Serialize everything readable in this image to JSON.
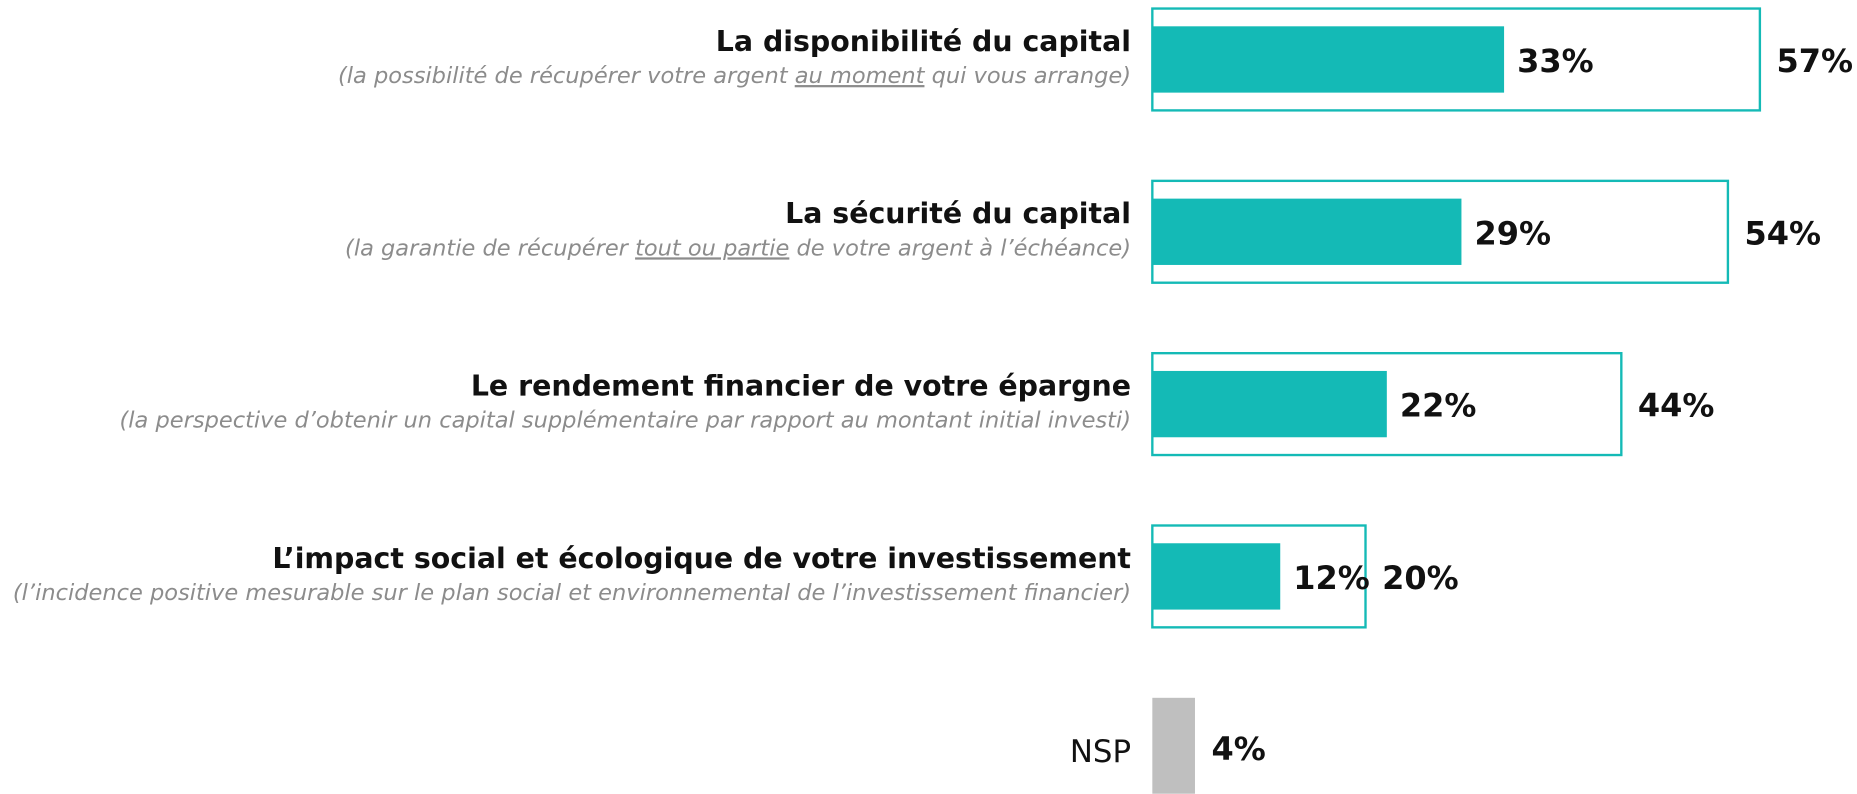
{
  "chart_data": {
    "type": "bar",
    "categories": [
      "La disponibilité du capital",
      "La sécurité du capital",
      "Le rendement financier de votre épargne",
      "L’impact social et écologique de votre investissement"
    ],
    "subtitles": [
      [
        {
          "text": "(la possibilité de récupérer votre argent ",
          "underline": false
        },
        {
          "text": "au moment",
          "underline": true
        },
        {
          "text": " qui vous arrange)",
          "underline": false
        }
      ],
      [
        {
          "text": "(la garantie de récupérer ",
          "underline": false
        },
        {
          "text": "tout ou partie",
          "underline": true
        },
        {
          "text": " de votre argent à l’échéance)",
          "underline": false
        }
      ],
      [
        {
          "text": "(la perspective d’obtenir un capital supplémentaire par rapport au montant initial investi)",
          "underline": false
        }
      ],
      [
        {
          "text": "(l’incidence positive mesurable sur le plan social et environnemental de l’investissement financier)",
          "underline": false
        }
      ]
    ],
    "series": [
      {
        "color": "#14bab6",
        "style": "filled",
        "values": [
          33,
          29,
          22,
          12
        ],
        "value_labels": [
          "33%",
          "29%",
          "22%",
          "12%"
        ]
      },
      {
        "color": "#14bab6",
        "style": "outline",
        "values": [
          57,
          54,
          44,
          20
        ],
        "value_labels": [
          "57%",
          "54%",
          "44%",
          "20%"
        ]
      }
    ],
    "nsp": {
      "label": "NSP",
      "value": 4,
      "value_label": "4%",
      "color": "#bfbfbf"
    }
  }
}
